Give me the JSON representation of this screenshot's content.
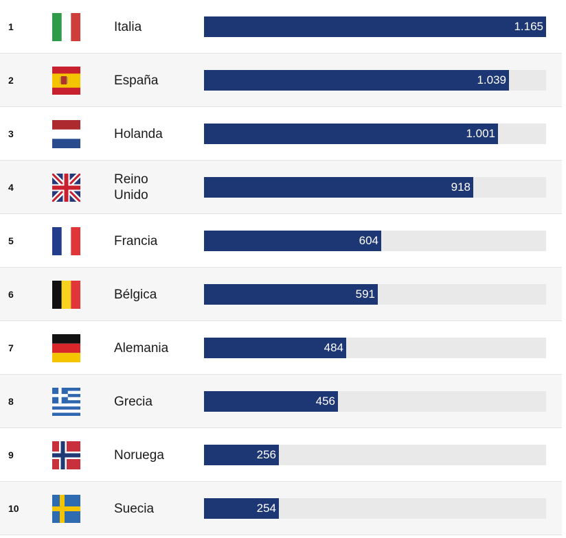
{
  "chart_data": {
    "type": "bar",
    "orientation": "horizontal",
    "ranks": [
      "1",
      "2",
      "3",
      "4",
      "5",
      "6",
      "7",
      "8",
      "9",
      "10"
    ],
    "categories": [
      "Italia",
      "España",
      "Holanda",
      "Reino\nUnido",
      "Francia",
      "Bélgica",
      "Alemania",
      "Grecia",
      "Noruega",
      "Suecia"
    ],
    "values": [
      1165,
      1039,
      1001,
      918,
      604,
      591,
      484,
      456,
      256,
      254
    ],
    "value_labels": [
      "1.165",
      "1.039",
      "1.001",
      "918",
      "604",
      "591",
      "484",
      "456",
      "256",
      "254"
    ],
    "xlim": [
      0,
      1165
    ],
    "title": "",
    "xlabel": "",
    "ylabel": "",
    "grid": false,
    "legend": "none"
  },
  "flags": [
    "italy-flag-icon",
    "spain-flag-icon",
    "netherlands-flag-icon",
    "united-kingdom-flag-icon",
    "france-flag-icon",
    "belgium-flag-icon",
    "germany-flag-icon",
    "greece-flag-icon",
    "norway-flag-icon",
    "sweden-flag-icon"
  ],
  "colors": {
    "bar": "#1d3674",
    "track": "#e9e9e9",
    "row_alt": "#f6f6f6",
    "value_text": "#ffffff"
  }
}
